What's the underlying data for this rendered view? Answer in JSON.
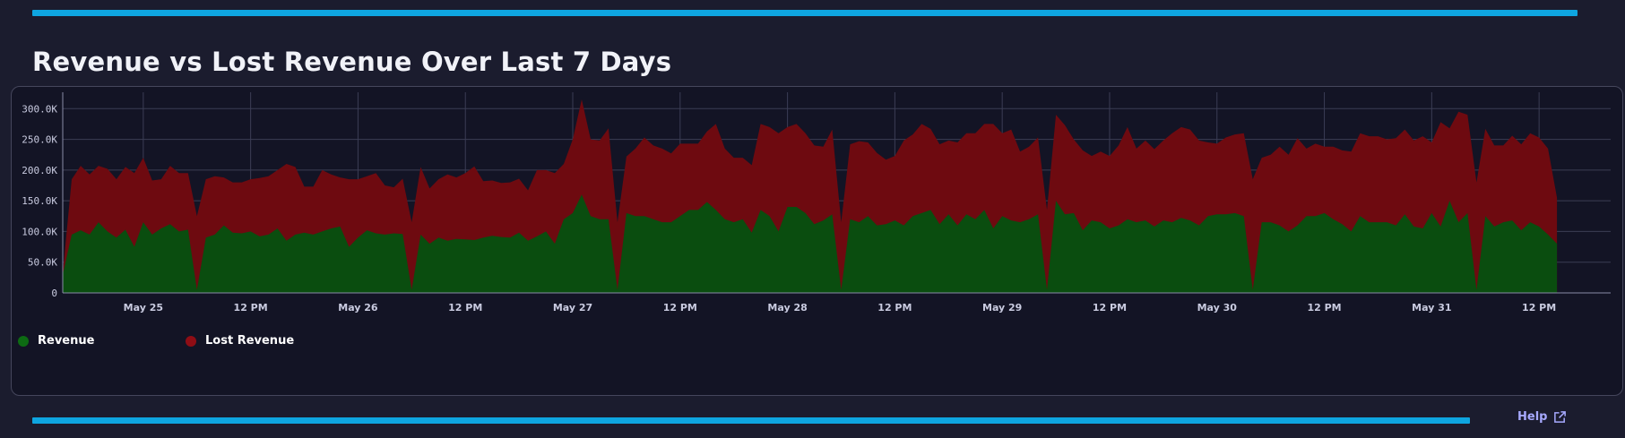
{
  "title": "Revenue vs Lost Revenue Over Last 7 Days",
  "help": {
    "label": "Help",
    "icon": "external-link-icon"
  },
  "colors": {
    "accent_bar": "#0ea5e0",
    "revenue": "#0a4d0f",
    "revenue_dot": "#0d6b13",
    "lost_revenue": "#6e0a10",
    "lost_dot": "#8f0d15",
    "link": "#a7a9ff"
  },
  "legend": {
    "revenue": "Revenue",
    "lost_revenue": "Lost Revenue"
  },
  "chart_data": {
    "type": "area",
    "stacked": true,
    "grid": true,
    "legend_position": "bottom-left",
    "x_start": "2024-05-24T15:00",
    "x_end": "2024-05-31T20:00",
    "step_hours": 1,
    "ylim": [
      0,
      315000
    ],
    "y_ticks": [
      "0",
      "50.0K",
      "100.0K",
      "150.0K",
      "200.0K",
      "250.0K",
      "300.0K"
    ],
    "x_ticks": [
      "May 25",
      "12 PM",
      "May 26",
      "12 PM",
      "May 27",
      "12 PM",
      "May 28",
      "12 PM",
      "May 29",
      "12 PM",
      "May 30",
      "12 PM",
      "May 31",
      "12 PM"
    ],
    "series": [
      {
        "name": "Revenue",
        "values": [
          30000,
          95000,
          102000,
          95000,
          115000,
          100000,
          90000,
          103000,
          75000,
          115000,
          95000,
          105000,
          112000,
          100000,
          103000,
          5000,
          90000,
          95000,
          110000,
          98000,
          97000,
          100000,
          92000,
          95000,
          105000,
          85000,
          95000,
          98000,
          95000,
          100000,
          105000,
          108000,
          75000,
          90000,
          102000,
          97000,
          95000,
          97000,
          96000,
          5000,
          95000,
          80000,
          90000,
          85000,
          88000,
          87000,
          86000,
          90000,
          93000,
          91000,
          90000,
          98000,
          85000,
          92000,
          100000,
          80000,
          120000,
          130000,
          160000,
          125000,
          120000,
          120000,
          5000,
          130000,
          125000,
          125000,
          120000,
          115000,
          115000,
          125000,
          135000,
          135000,
          148000,
          135000,
          120000,
          115000,
          120000,
          98000,
          135000,
          125000,
          100000,
          140000,
          140000,
          130000,
          112000,
          118000,
          128000,
          5000,
          120000,
          115000,
          125000,
          110000,
          112000,
          118000,
          110000,
          125000,
          130000,
          135000,
          112000,
          128000,
          110000,
          128000,
          120000,
          135000,
          105000,
          125000,
          118000,
          115000,
          120000,
          128000,
          5000,
          150000,
          128000,
          130000,
          102000,
          118000,
          115000,
          105000,
          110000,
          120000,
          115000,
          118000,
          108000,
          118000,
          115000,
          122000,
          118000,
          110000,
          125000,
          128000,
          128000,
          130000,
          125000,
          5000,
          115000,
          115000,
          110000,
          100000,
          110000,
          125000,
          125000,
          130000,
          120000,
          112000,
          100000,
          125000,
          115000,
          115000,
          115000,
          110000,
          128000,
          108000,
          105000,
          130000,
          108000,
          150000,
          115000,
          130000,
          5000,
          125000,
          108000,
          115000,
          118000,
          102000,
          115000,
          108000,
          95000,
          80000
        ],
        "color": "#0a4d0f"
      },
      {
        "name": "Lost Revenue",
        "values": [
          2000,
          90000,
          105000,
          98000,
          92000,
          102000,
          95000,
          102000,
          120000,
          105000,
          88000,
          80000,
          95000,
          95000,
          92000,
          120000,
          95000,
          95000,
          78000,
          82000,
          83000,
          85000,
          95000,
          95000,
          95000,
          125000,
          110000,
          75000,
          78000,
          100000,
          88000,
          80000,
          110000,
          95000,
          88000,
          98000,
          80000,
          75000,
          90000,
          110000,
          110000,
          90000,
          95000,
          108000,
          100000,
          108000,
          120000,
          92000,
          90000,
          88000,
          90000,
          88000,
          82000,
          108000,
          100000,
          115000,
          90000,
          120000,
          155000,
          125000,
          128000,
          148000,
          110000,
          92000,
          110000,
          128000,
          120000,
          120000,
          112000,
          118000,
          108000,
          108000,
          115000,
          140000,
          115000,
          105000,
          100000,
          110000,
          140000,
          145000,
          160000,
          130000,
          135000,
          130000,
          128000,
          120000,
          138000,
          110000,
          122000,
          132000,
          120000,
          118000,
          105000,
          105000,
          138000,
          133000,
          145000,
          132000,
          130000,
          120000,
          135000,
          132000,
          140000,
          140000,
          170000,
          135000,
          148000,
          115000,
          118000,
          125000,
          130000,
          140000,
          145000,
          120000,
          130000,
          105000,
          115000,
          118000,
          130000,
          150000,
          120000,
          130000,
          126000,
          130000,
          145000,
          148000,
          148000,
          138000,
          120000,
          115000,
          125000,
          128000,
          135000,
          180000,
          105000,
          110000,
          128000,
          125000,
          142000,
          110000,
          118000,
          108000,
          118000,
          120000,
          130000,
          135000,
          140000,
          140000,
          135000,
          142000,
          138000,
          140000,
          150000,
          115000,
          170000,
          118000,
          180000,
          160000,
          175000,
          142000,
          132000,
          125000,
          138000,
          140000,
          145000,
          145000,
          140000,
          75000
        ]
      }
    ]
  }
}
